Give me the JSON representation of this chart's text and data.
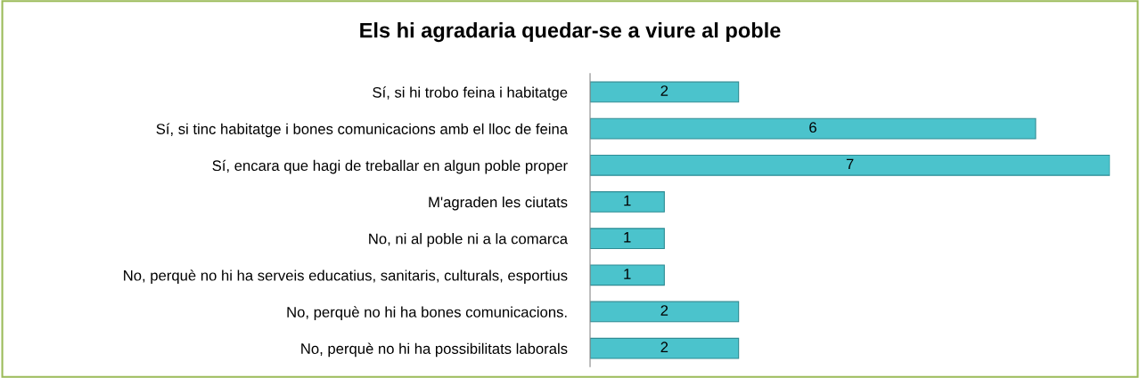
{
  "chart_data": {
    "type": "bar",
    "orientation": "horizontal",
    "title": "Els hi agradaria quedar-se a viure al poble",
    "categories": [
      "Sí, si hi trobo feina i habitatge",
      "Sí, si tinc habitatge i bones comunicacions amb el lloc de feina",
      "Sí, encara que hagi de treballar en algun poble proper",
      "M'agraden les ciutats",
      "No, ni al poble ni a la comarca",
      "No, perquè no hi ha serveis educatius, sanitaris, culturals, esportius",
      "No, perquè no hi ha bones comunicacions.",
      "No, perquè no hi ha possibilitats laborals"
    ],
    "values": [
      2,
      6,
      7,
      1,
      1,
      1,
      2,
      2
    ],
    "color": "#4bc3cc",
    "data_labels": true,
    "tick_labels": "y",
    "grid": false,
    "legend": false
  }
}
